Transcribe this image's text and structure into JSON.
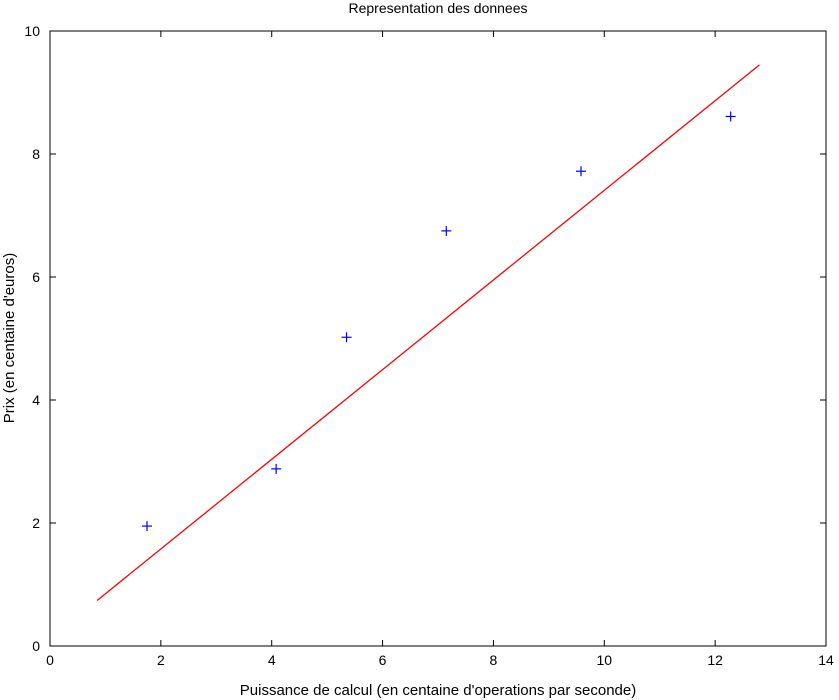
{
  "chart_data": {
    "type": "scatter",
    "title": "Representation des donnees",
    "xlabel": "Puissance de calcul (en centaine d'operations par seconde)",
    "ylabel": "Prix (en centaine d'euros)",
    "xlim": [
      0,
      14
    ],
    "ylim": [
      0,
      10
    ],
    "xticks": [
      0,
      2,
      4,
      6,
      8,
      10,
      12,
      14
    ],
    "yticks": [
      0,
      2,
      4,
      6,
      8,
      10
    ],
    "xtick_labels": [
      "0",
      "2",
      "4",
      "6",
      "8",
      "10",
      "12",
      "14"
    ],
    "ytick_labels": [
      "0",
      "2",
      "4",
      "6",
      "8",
      "10"
    ],
    "grid": false,
    "series": [
      {
        "type": "scatter",
        "marker": "+",
        "color": "#0000ff",
        "x": [
          1.75,
          4.08,
          5.35,
          7.15,
          9.58,
          12.28
        ],
        "y": [
          1.95,
          2.88,
          5.02,
          6.75,
          7.72,
          8.61
        ]
      },
      {
        "type": "line",
        "color": "#ff0000",
        "x": [
          0.85,
          12.8
        ],
        "y": [
          0.74,
          9.45
        ]
      }
    ]
  }
}
